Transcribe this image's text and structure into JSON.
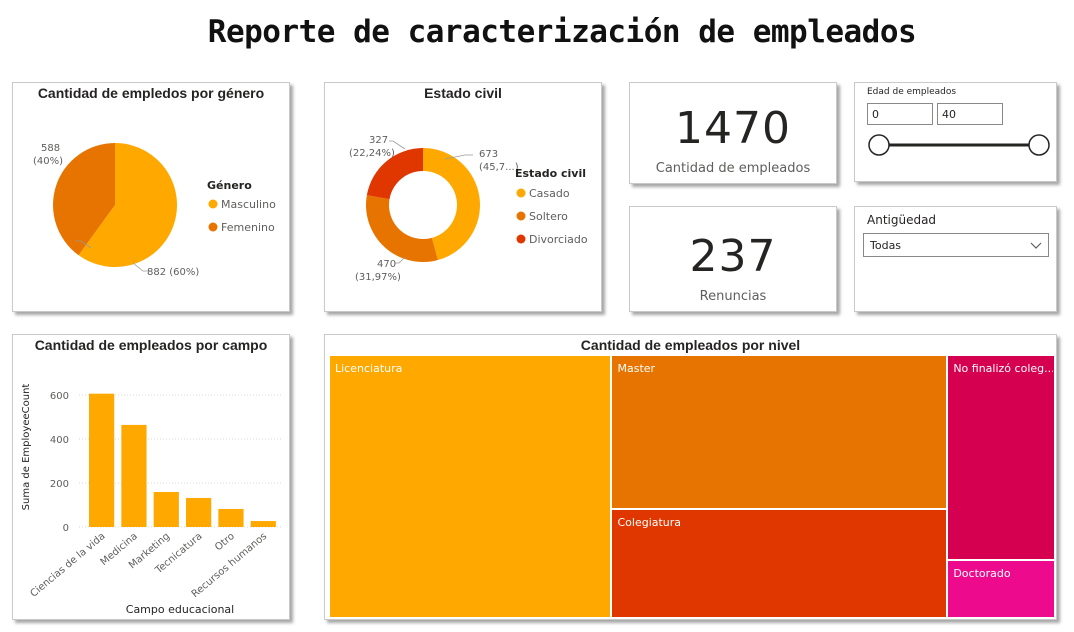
{
  "header": {
    "title": "Reporte de caracterización de empleados"
  },
  "gender": {
    "title": "Cantidad de empledos por género",
    "legend_title": "Género",
    "labels": {
      "femenino": "588",
      "femenino_pct": "(40%)",
      "masculino": "882 (60%)"
    }
  },
  "civil": {
    "title": "Estado civil",
    "legend_title": "Estado civil",
    "labels": {
      "casado_a": "673",
      "casado_b": "(45,7...)",
      "soltero_a": "470",
      "soltero_b": "(31,97%)",
      "divorciado_a": "327",
      "divorciado_b": "(22,24%)"
    }
  },
  "kpi_employees": {
    "value": "1470",
    "label": "Cantidad de empleados"
  },
  "kpi_resignations": {
    "value": "237",
    "label": "Renuncias"
  },
  "age_slicer": {
    "title": "Edad de empleados",
    "min_value": "0",
    "max_value": "40"
  },
  "seniority": {
    "title": "Antigüedad",
    "selected": "Todas"
  },
  "field": {
    "title": "Cantidad de empleados por campo",
    "xlabel": "Campo educacional",
    "ylabel": "Suma de EmployeeCount"
  },
  "level": {
    "title": "Cantidad de empleados por nivel"
  },
  "colors": {
    "amber": "#FFA800",
    "orange": "#E87400",
    "red": "#E03700",
    "crimson": "#D5004F",
    "pink": "#EE0A8C"
  },
  "chart_data": [
    {
      "type": "pie",
      "categories": [
        "Masculino",
        "Femenino"
      ],
      "values": [
        882,
        588
      ],
      "title": "Cantidad de empledos por género",
      "legend": "right"
    },
    {
      "type": "pie",
      "categories": [
        "Casado",
        "Soltero",
        "Divorciado"
      ],
      "values": [
        673,
        470,
        327
      ],
      "title": "Estado civil",
      "legend": "right"
    },
    {
      "type": "bar",
      "categories": [
        "Ciencias de la vida",
        "Medicina",
        "Marketing",
        "Tecnicatura",
        "Otro",
        "Recursos humanos"
      ],
      "values": [
        606,
        464,
        159,
        132,
        82,
        27
      ],
      "yticks": [
        "0",
        "200",
        "400",
        "600"
      ],
      "ylim": [
        0,
        700
      ],
      "title": "Cantidad de empleados por campo",
      "xlabel": "Campo educacional",
      "ylabel": "Suma de EmployeeCount",
      "grid": true
    },
    {
      "type": "treemap",
      "categories": [
        "Licenciatura",
        "Master",
        "Colegiatura",
        "No finalizó coleg...",
        "Doctorado"
      ],
      "values": [
        572,
        398,
        282,
        170,
        48
      ],
      "title": "Cantidad de empleados por nivel"
    }
  ]
}
